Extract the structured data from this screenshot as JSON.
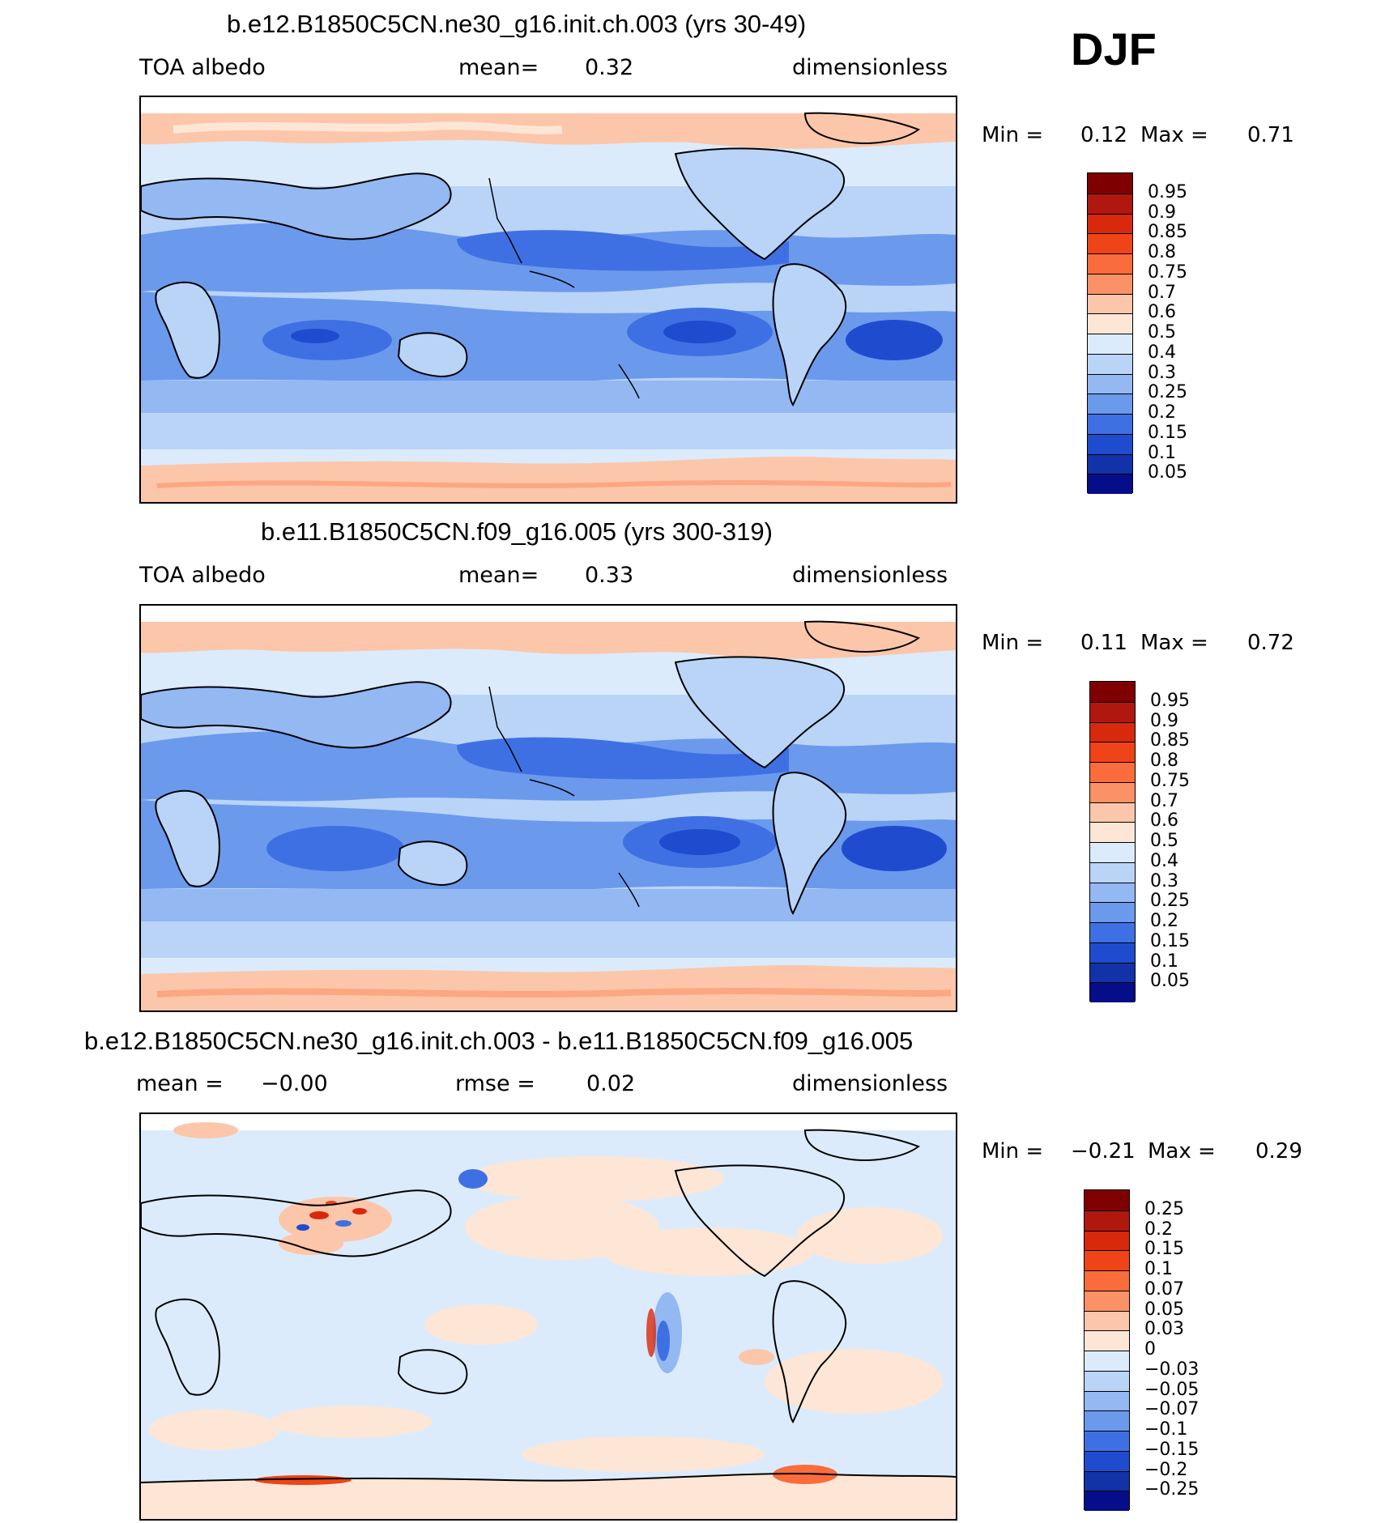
{
  "season": "DJF",
  "panels": [
    {
      "id": "panel1",
      "title": "b.e12.B1850C5CN.ne30_g16.init.ch.003 (yrs 30-49)",
      "left_label": "TOA  albedo",
      "center_label": "mean=",
      "center_value": "0.32",
      "right_label": "dimensionless",
      "min_label": "Min  =",
      "min_value": "0.12",
      "max_label": "Max  =",
      "max_value": "0.71",
      "colorbar": {
        "labels": [
          "0.95",
          "0.9",
          "0.85",
          "0.8",
          "0.75",
          "0.7",
          "0.6",
          "0.5",
          "0.4",
          "0.3",
          "0.25",
          "0.2",
          "0.15",
          "0.1",
          "0.05"
        ],
        "colors": [
          "#7f0000",
          "#b0170f",
          "#d8290d",
          "#ee4418",
          "#fa6c3b",
          "#fb9167",
          "#fcc6aa",
          "#fde6d6",
          "#dcebfb",
          "#b9d4f7",
          "#94b8f2",
          "#6b99ec",
          "#3f70e3",
          "#1f4ccf",
          "#1232a8",
          "#060d88"
        ]
      }
    },
    {
      "id": "panel2",
      "title": "b.e11.B1850C5CN.f09_g16.005 (yrs 300-319)",
      "left_label": "TOA  albedo",
      "center_label": "mean=",
      "center_value": "0.33",
      "right_label": "dimensionless",
      "min_label": "Min  =",
      "min_value": "0.11",
      "max_label": "Max  =",
      "max_value": "0.72",
      "colorbar": {
        "labels": [
          "0.95",
          "0.9",
          "0.85",
          "0.8",
          "0.75",
          "0.7",
          "0.6",
          "0.5",
          "0.4",
          "0.3",
          "0.25",
          "0.2",
          "0.15",
          "0.1",
          "0.05"
        ],
        "colors": [
          "#7f0000",
          "#b0170f",
          "#d8290d",
          "#ee4418",
          "#fa6c3b",
          "#fb9167",
          "#fcc6aa",
          "#fde6d6",
          "#dcebfb",
          "#b9d4f7",
          "#94b8f2",
          "#6b99ec",
          "#3f70e3",
          "#1f4ccf",
          "#1232a8",
          "#060d88"
        ]
      }
    },
    {
      "id": "panel3",
      "title": "b.e12.B1850C5CN.ne30_g16.init.ch.003 - b.e11.B1850C5CN.f09_g16.005",
      "left_label": "mean  =",
      "left_value": "−0.00",
      "center_label": "rmse  =",
      "center_value": "0.02",
      "right_label": "dimensionless",
      "min_label": "Min  =",
      "min_value": "−0.21",
      "max_label": "Max  =",
      "max_value": "0.29",
      "colorbar": {
        "labels": [
          "0.25",
          "0.2",
          "0.15",
          "0.1",
          "0.07",
          "0.05",
          "0.03",
          "0",
          "−0.03",
          "−0.05",
          "−0.07",
          "−0.1",
          "−0.15",
          "−0.2",
          "−0.25"
        ],
        "colors": [
          "#7f0000",
          "#b0170f",
          "#d8290d",
          "#ee4418",
          "#fa6c3b",
          "#fb9167",
          "#fcc6aa",
          "#fde6d6",
          "#dcebfb",
          "#b9d4f7",
          "#94b8f2",
          "#6b99ec",
          "#3f70e3",
          "#1f4ccf",
          "#1232a8",
          "#060d88"
        ]
      }
    }
  ]
}
